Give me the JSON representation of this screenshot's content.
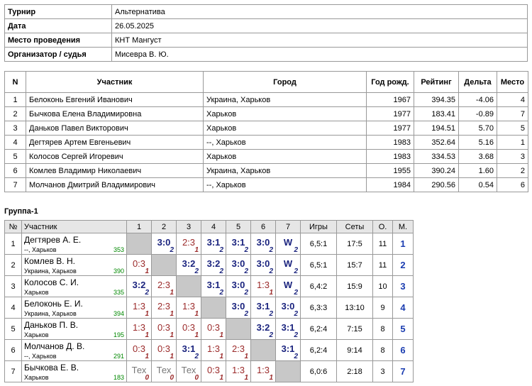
{
  "info": {
    "rows": [
      {
        "label": "Турнир",
        "value": "Альтернатива"
      },
      {
        "label": "Дата",
        "value": "26.05.2025"
      },
      {
        "label": "Место проведения",
        "value": "КНТ Мангуст"
      },
      {
        "label": "Организатор / судья",
        "value": "Мисевра В. Ю."
      }
    ]
  },
  "participants": {
    "header": [
      "N",
      "Участник",
      "Город",
      "Год рожд.",
      "Рейтинг",
      "Дельта",
      "Место"
    ],
    "rows": [
      [
        "1",
        "Белоконь Евгений Иванович",
        "Украина, Харьков",
        "1967",
        "394.35",
        "-4.06",
        "4"
      ],
      [
        "2",
        "Бычкова Елена Владимировна",
        "Харьков",
        "1977",
        "183.41",
        "-0.89",
        "7"
      ],
      [
        "3",
        "Даньков Павел Викторович",
        "Харьков",
        "1977",
        "194.51",
        "5.70",
        "5"
      ],
      [
        "4",
        "Дегтярев Артем Евгеньевич",
        "--, Харьков",
        "1983",
        "352.64",
        "5.16",
        "1"
      ],
      [
        "5",
        "Колосов Сергей Игоревич",
        "Харьков",
        "1983",
        "334.53",
        "3.68",
        "3"
      ],
      [
        "6",
        "Комлев Владимир Николаевич",
        "Украина, Харьков",
        "1955",
        "390.24",
        "1.60",
        "2"
      ],
      [
        "7",
        "Молчанов Дмитрий Владимирович",
        "--, Харьков",
        "1984",
        "290.56",
        "0.54",
        "6"
      ]
    ]
  },
  "group": {
    "title": "Группа-1",
    "header": [
      "№",
      "Участник",
      "1",
      "2",
      "3",
      "4",
      "5",
      "6",
      "7",
      "Игры",
      "Сеты",
      "О.",
      "М."
    ],
    "rows": [
      {
        "n": "1",
        "name": "Дегтярев А. Е.",
        "city": "--, Харьков",
        "rating": 353,
        "cells": [
          null,
          {
            "score": "3:0",
            "pts": 2
          },
          {
            "score": "2:3",
            "pts": 1
          },
          {
            "score": "3:1",
            "pts": 2
          },
          {
            "score": "3:1",
            "pts": 2
          },
          {
            "score": "3:0",
            "pts": 2
          },
          {
            "score": "W",
            "pts": 2
          }
        ],
        "games": "6,5:1",
        "sets": "17:5",
        "points": 11,
        "place": 1
      },
      {
        "n": "2",
        "name": "Комлев В. Н.",
        "city": "Украина, Харьков",
        "rating": 390,
        "cells": [
          {
            "score": "0:3",
            "pts": 1
          },
          null,
          {
            "score": "3:2",
            "pts": 2
          },
          {
            "score": "3:2",
            "pts": 2
          },
          {
            "score": "3:0",
            "pts": 2
          },
          {
            "score": "3:0",
            "pts": 2
          },
          {
            "score": "W",
            "pts": 2
          }
        ],
        "games": "6,5:1",
        "sets": "15:7",
        "points": 11,
        "place": 2
      },
      {
        "n": "3",
        "name": "Колосов С. И.",
        "city": "Харьков",
        "rating": 335,
        "cells": [
          {
            "score": "3:2",
            "pts": 2
          },
          {
            "score": "2:3",
            "pts": 1
          },
          null,
          {
            "score": "3:1",
            "pts": 2
          },
          {
            "score": "3:0",
            "pts": 2
          },
          {
            "score": "1:3",
            "pts": 1
          },
          {
            "score": "W",
            "pts": 2
          }
        ],
        "games": "6,4:2",
        "sets": "15:9",
        "points": 10,
        "place": 3
      },
      {
        "n": "4",
        "name": "Белоконь Е. И.",
        "city": "Украина, Харьков",
        "rating": 394,
        "cells": [
          {
            "score": "1:3",
            "pts": 1
          },
          {
            "score": "2:3",
            "pts": 1
          },
          {
            "score": "1:3",
            "pts": 1
          },
          null,
          {
            "score": "3:0",
            "pts": 2
          },
          {
            "score": "3:1",
            "pts": 2
          },
          {
            "score": "3:0",
            "pts": 2
          }
        ],
        "games": "6,3:3",
        "sets": "13:10",
        "points": 9,
        "place": 4
      },
      {
        "n": "5",
        "name": "Даньков П. В.",
        "city": "Харьков",
        "rating": 195,
        "cells": [
          {
            "score": "1:3",
            "pts": 1
          },
          {
            "score": "0:3",
            "pts": 1
          },
          {
            "score": "0:3",
            "pts": 1
          },
          {
            "score": "0:3",
            "pts": 1
          },
          null,
          {
            "score": "3:2",
            "pts": 2
          },
          {
            "score": "3:1",
            "pts": 2
          }
        ],
        "games": "6,2:4",
        "sets": "7:15",
        "points": 8,
        "place": 5
      },
      {
        "n": "6",
        "name": "Молчанов Д. В.",
        "city": "--, Харьков",
        "rating": 291,
        "cells": [
          {
            "score": "0:3",
            "pts": 1
          },
          {
            "score": "0:3",
            "pts": 1
          },
          {
            "score": "3:1",
            "pts": 2
          },
          {
            "score": "1:3",
            "pts": 1
          },
          {
            "score": "2:3",
            "pts": 1
          },
          null,
          {
            "score": "3:1",
            "pts": 2
          }
        ],
        "games": "6,2:4",
        "sets": "9:14",
        "points": 8,
        "place": 6
      },
      {
        "n": "7",
        "name": "Бычкова Е. В.",
        "city": "Харьков",
        "rating": 183,
        "cells": [
          {
            "score": "Тех",
            "pts": 0
          },
          {
            "score": "Тех",
            "pts": 0
          },
          {
            "score": "Тех",
            "pts": 0
          },
          {
            "score": "0:3",
            "pts": 1
          },
          {
            "score": "1:3",
            "pts": 1
          },
          {
            "score": "1:3",
            "pts": 1
          },
          null
        ],
        "games": "6,0:6",
        "sets": "2:18",
        "points": 3,
        "place": 7
      }
    ]
  }
}
